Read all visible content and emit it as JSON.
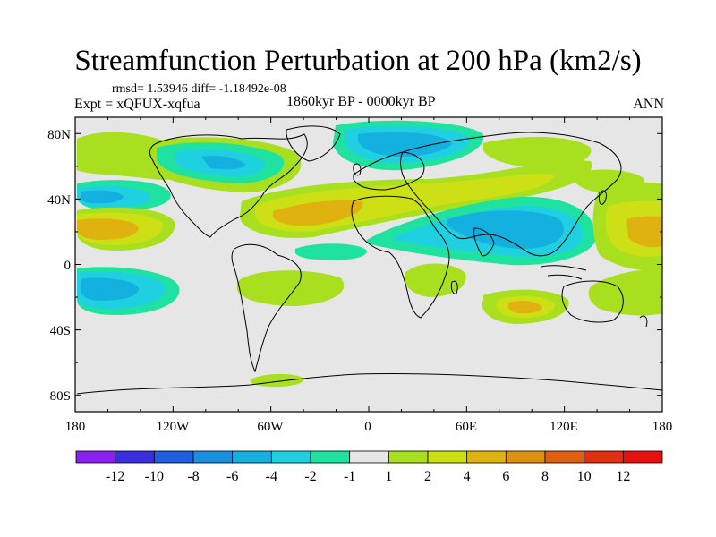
{
  "title": "Streamfunction Perturbation at 200 hPa (km2/s)",
  "stats": "rmsd= 1.53946 diff= -1.18492e-08",
  "experiment": "Expt = xQFUX-xqfua",
  "period": "1860kyr BP - 0000kyr BP",
  "season": "ANN",
  "lat_ticks": [
    "80N",
    "40N",
    "0",
    "40S",
    "80S"
  ],
  "lon_ticks": [
    "180",
    "120W",
    "60W",
    "0",
    "60E",
    "120E",
    "180"
  ],
  "colorbar": {
    "labels": [
      "-12",
      "-10",
      "-8",
      "-6",
      "-4",
      "-2",
      "-1",
      "1",
      "2",
      "4",
      "6",
      "8",
      "10",
      "12"
    ],
    "colors": [
      "#8a1ff0",
      "#3a2fe0",
      "#1f5fe0",
      "#1a8fe0",
      "#14b0e0",
      "#1fd0e0",
      "#20e2a0",
      "#e6e6e6",
      "#a8e01f",
      "#cce015",
      "#e0b20f",
      "#e09010",
      "#e0600f",
      "#e03010",
      "#e8100f"
    ]
  },
  "colors": {
    "background_field": "#e6e6e6",
    "frame": "#000000"
  }
}
